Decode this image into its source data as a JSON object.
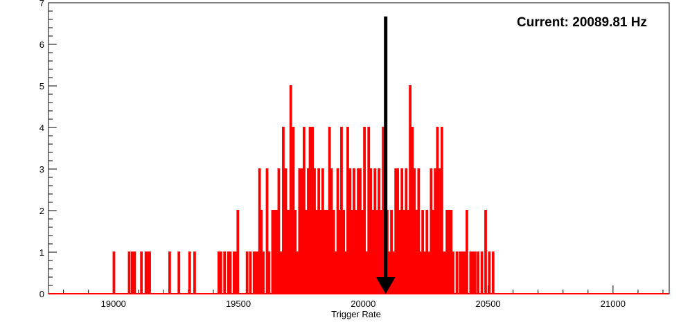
{
  "chart_data": {
    "type": "histogram",
    "title": "",
    "xlabel": "Trigger Rate",
    "ylabel": "",
    "xlim": [
      18740,
      21225
    ],
    "ylim": [
      0,
      7
    ],
    "x_ticks": [
      19000,
      19500,
      20000,
      20500,
      21000
    ],
    "y_ticks": [
      0,
      1,
      2,
      3,
      4,
      5,
      6,
      7
    ],
    "grid": false,
    "line_color": "#ff0000",
    "bin_width": 4.97,
    "bins": [
      [
        19002,
        1
      ],
      [
        19063,
        1
      ],
      [
        19075,
        1
      ],
      [
        19085,
        1
      ],
      [
        19112,
        1
      ],
      [
        19130,
        1
      ],
      [
        19137,
        1
      ],
      [
        19145,
        1
      ],
      [
        19225,
        1
      ],
      [
        19262,
        1
      ],
      [
        19305,
        1
      ],
      [
        19325,
        1
      ],
      [
        19422,
        1
      ],
      [
        19430,
        1
      ],
      [
        19445,
        1
      ],
      [
        19460,
        1
      ],
      [
        19468,
        1
      ],
      [
        19483,
        1
      ],
      [
        19490,
        1
      ],
      [
        19498,
        2
      ],
      [
        19535,
        1
      ],
      [
        19548,
        1
      ],
      [
        19563,
        1
      ],
      [
        19570,
        1
      ],
      [
        19578,
        1
      ],
      [
        19585,
        3
      ],
      [
        19592,
        2
      ],
      [
        19600,
        1
      ],
      [
        19615,
        3
      ],
      [
        19623,
        1
      ],
      [
        19637,
        2
      ],
      [
        19645,
        2
      ],
      [
        19655,
        2
      ],
      [
        19662,
        3
      ],
      [
        19670,
        1
      ],
      [
        19680,
        4
      ],
      [
        19690,
        3
      ],
      [
        19700,
        2
      ],
      [
        19710,
        5
      ],
      [
        19720,
        4
      ],
      [
        19728,
        2
      ],
      [
        19738,
        1
      ],
      [
        19745,
        3
      ],
      [
        19755,
        3
      ],
      [
        19763,
        4
      ],
      [
        19772,
        2
      ],
      [
        19780,
        3
      ],
      [
        19787,
        4
      ],
      [
        19797,
        4
      ],
      [
        19805,
        3
      ],
      [
        19813,
        2
      ],
      [
        19822,
        3
      ],
      [
        19830,
        2
      ],
      [
        19838,
        3
      ],
      [
        19847,
        2
      ],
      [
        19855,
        2
      ],
      [
        19865,
        4
      ],
      [
        19873,
        3
      ],
      [
        19882,
        2
      ],
      [
        19890,
        1
      ],
      [
        19898,
        3
      ],
      [
        19905,
        2
      ],
      [
        19913,
        4
      ],
      [
        19922,
        2
      ],
      [
        19930,
        1
      ],
      [
        19938,
        4
      ],
      [
        19947,
        3
      ],
      [
        19955,
        2
      ],
      [
        19963,
        3
      ],
      [
        19972,
        2
      ],
      [
        19980,
        3
      ],
      [
        19988,
        3
      ],
      [
        19997,
        2
      ],
      [
        20005,
        4
      ],
      [
        20013,
        1
      ],
      [
        20022,
        4
      ],
      [
        20030,
        3
      ],
      [
        20038,
        2
      ],
      [
        20047,
        3
      ],
      [
        20055,
        2
      ],
      [
        20063,
        3
      ],
      [
        20072,
        2
      ],
      [
        20080,
        4
      ],
      [
        20088,
        3
      ],
      [
        20096,
        2
      ],
      [
        20105,
        1
      ],
      [
        20113,
        2
      ],
      [
        20122,
        1
      ],
      [
        20130,
        3
      ],
      [
        20138,
        3
      ],
      [
        20147,
        2
      ],
      [
        20155,
        3
      ],
      [
        20163,
        2
      ],
      [
        20172,
        3
      ],
      [
        20180,
        2
      ],
      [
        20188,
        5
      ],
      [
        20197,
        4
      ],
      [
        20205,
        3
      ],
      [
        20213,
        2
      ],
      [
        20222,
        3
      ],
      [
        20230,
        1
      ],
      [
        20238,
        2
      ],
      [
        20247,
        1
      ],
      [
        20255,
        2
      ],
      [
        20263,
        1
      ],
      [
        20272,
        3
      ],
      [
        20280,
        2
      ],
      [
        20288,
        3
      ],
      [
        20297,
        4
      ],
      [
        20305,
        3
      ],
      [
        20315,
        4
      ],
      [
        20325,
        1
      ],
      [
        20335,
        2
      ],
      [
        20343,
        2
      ],
      [
        20352,
        2
      ],
      [
        20360,
        1
      ],
      [
        20375,
        1
      ],
      [
        20388,
        1
      ],
      [
        20397,
        1
      ],
      [
        20405,
        1
      ],
      [
        20415,
        2
      ],
      [
        20430,
        1
      ],
      [
        20438,
        1
      ],
      [
        20448,
        1
      ],
      [
        20460,
        1
      ],
      [
        20475,
        1
      ],
      [
        20490,
        2
      ],
      [
        20505,
        1
      ],
      [
        20520,
        1
      ]
    ],
    "annotations": [
      {
        "type": "arrow",
        "x": 20089.81,
        "from_y": 6.67,
        "to_y": 0
      }
    ]
  },
  "readout": {
    "current_text": "Current: 20089.81 Hz"
  }
}
